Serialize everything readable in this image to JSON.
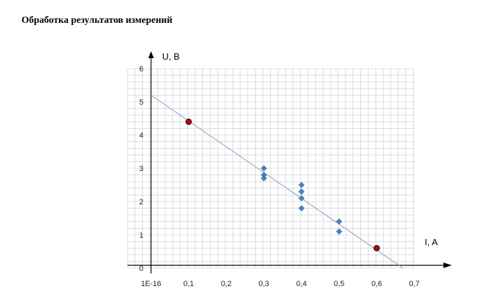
{
  "page": {
    "heading": "Обработка результатов измерений"
  },
  "colors": {
    "grid": "#c8c8c8",
    "axis": "#000000",
    "series": "#4a7ebb",
    "fit_line": "#7f9fc8",
    "highlight": "#c00000"
  },
  "chart_data": {
    "type": "scatter",
    "xlabel": "I, A",
    "ylabel": "U, B",
    "x_tick_labels": [
      "1E-16",
      "0,1",
      "0,2",
      "0,3",
      "0,4",
      "0,5",
      "0,6",
      "0,7"
    ],
    "y_tick_labels": [
      "0",
      "1",
      "2",
      "3",
      "4",
      "5",
      "6"
    ],
    "xlim": [
      0,
      0.7
    ],
    "ylim": [
      0,
      6
    ],
    "grid": true,
    "series": [
      {
        "marker": "diamond",
        "color": "#4a7ebb",
        "points": [
          {
            "x": 0.3,
            "y": 3.0
          },
          {
            "x": 0.3,
            "y": 2.8
          },
          {
            "x": 0.3,
            "y": 2.7
          },
          {
            "x": 0.4,
            "y": 2.5
          },
          {
            "x": 0.4,
            "y": 2.3
          },
          {
            "x": 0.4,
            "y": 2.1
          },
          {
            "x": 0.4,
            "y": 1.8
          },
          {
            "x": 0.5,
            "y": 1.4
          },
          {
            "x": 0.5,
            "y": 1.1
          }
        ]
      },
      {
        "marker": "circle",
        "color": "#c00000",
        "points": [
          {
            "x": 0.1,
            "y": 4.4
          },
          {
            "x": 0.6,
            "y": 0.6
          }
        ]
      }
    ],
    "trendline": {
      "from": {
        "x": 0,
        "y": 5.2
      },
      "to": {
        "x": 0.67,
        "y": 0
      }
    }
  }
}
